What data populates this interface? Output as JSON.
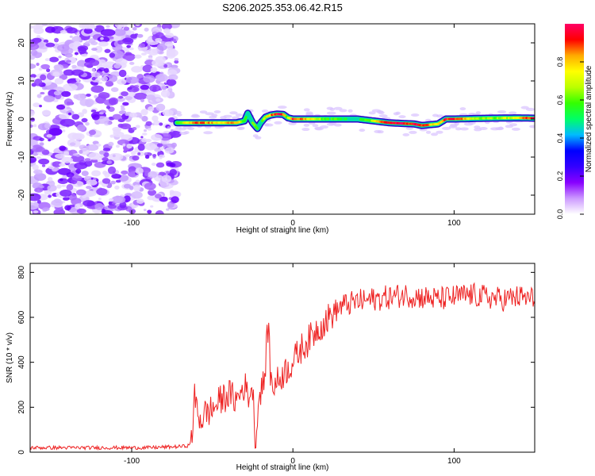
{
  "chart_data": [
    {
      "type": "heatmap",
      "title": "S206.2025.353.06.42.R15",
      "xlabel": "Height of straight line (km)",
      "ylabel": "Frequency (Hz)",
      "xlim": [
        -163,
        150
      ],
      "ylim": [
        -25,
        25
      ],
      "xticks": [
        -100,
        0,
        100
      ],
      "yticks": [
        -20,
        -10,
        0,
        10,
        20
      ],
      "noise_region_x": [
        -163,
        -72
      ],
      "ridge": {
        "x": [
          -72,
          -60,
          -45,
          -35,
          -30,
          -28,
          -25,
          -22,
          -20,
          -17,
          -14,
          -10,
          -6,
          -3,
          0,
          20,
          40,
          60,
          75,
          80,
          90,
          95,
          100,
          120,
          140,
          150
        ],
        "freq": [
          -1,
          -1,
          -1,
          -1,
          -0.5,
          1.5,
          -1,
          -2.5,
          -1,
          0.5,
          1,
          1.3,
          1.2,
          0.3,
          0,
          0,
          0,
          -1,
          -1.3,
          -1.7,
          -1.3,
          0,
          0,
          0.2,
          0.3,
          0.2
        ],
        "amplitude": [
          0.55,
          0.9,
          0.75,
          0.85,
          0.6,
          0.5,
          0.55,
          0.6,
          0.5,
          0.65,
          0.8,
          0.95,
          0.9,
          0.6,
          0.95,
          0.6,
          0.45,
          0.95,
          0.95,
          0.95,
          0.7,
          0.95,
          0.9,
          0.6,
          0.75,
          0.95
        ]
      },
      "colorbar": {
        "label": "Normalized spectral amplitude",
        "ticks": [
          0,
          0.2,
          0.4,
          0.6,
          0.8
        ],
        "tick_labels": [
          "0.0",
          "0.2",
          "0.4",
          "0.6",
          "0.8"
        ],
        "colors": [
          "#ffffff",
          "#cc99ff",
          "#8800ff",
          "#3300ff",
          "#0000ff",
          "#00bbff",
          "#00ff66",
          "#33ff00",
          "#bbff00",
          "#ffff00",
          "#ffaa00",
          "#ff0000",
          "#ff0066"
        ]
      }
    },
    {
      "type": "line",
      "xlabel": "Height of straight line (km)",
      "ylabel": "SNR (10 * v/v)",
      "xlim": [
        -163,
        150
      ],
      "ylim": [
        0,
        840
      ],
      "xticks": [
        -100,
        0,
        100
      ],
      "yticks": [
        0,
        200,
        400,
        600,
        800
      ],
      "line_color": "#ee2222",
      "series": [
        {
          "name": "SNR",
          "x": [
            -163,
            -150,
            -130,
            -110,
            -90,
            -70,
            -64,
            -62,
            -61,
            -59,
            -57,
            -55,
            -50,
            -45,
            -40,
            -35,
            -30,
            -28,
            -25,
            -23,
            -22,
            -20,
            -18,
            -15,
            -14,
            -12,
            -10,
            -5,
            0,
            5,
            10,
            15,
            20,
            25,
            30,
            40,
            50,
            60,
            70,
            80,
            90,
            100,
            110,
            120,
            130,
            140,
            150
          ],
          "y": [
            20,
            20,
            20,
            20,
            20,
            25,
            30,
            120,
            240,
            180,
            140,
            170,
            190,
            230,
            260,
            230,
            300,
            250,
            290,
            20,
            180,
            280,
            300,
            600,
            330,
            300,
            310,
            360,
            400,
            460,
            500,
            550,
            580,
            620,
            650,
            670,
            680,
            690,
            700,
            690,
            680,
            690,
            700,
            690,
            680,
            690,
            680
          ]
        }
      ]
    }
  ]
}
